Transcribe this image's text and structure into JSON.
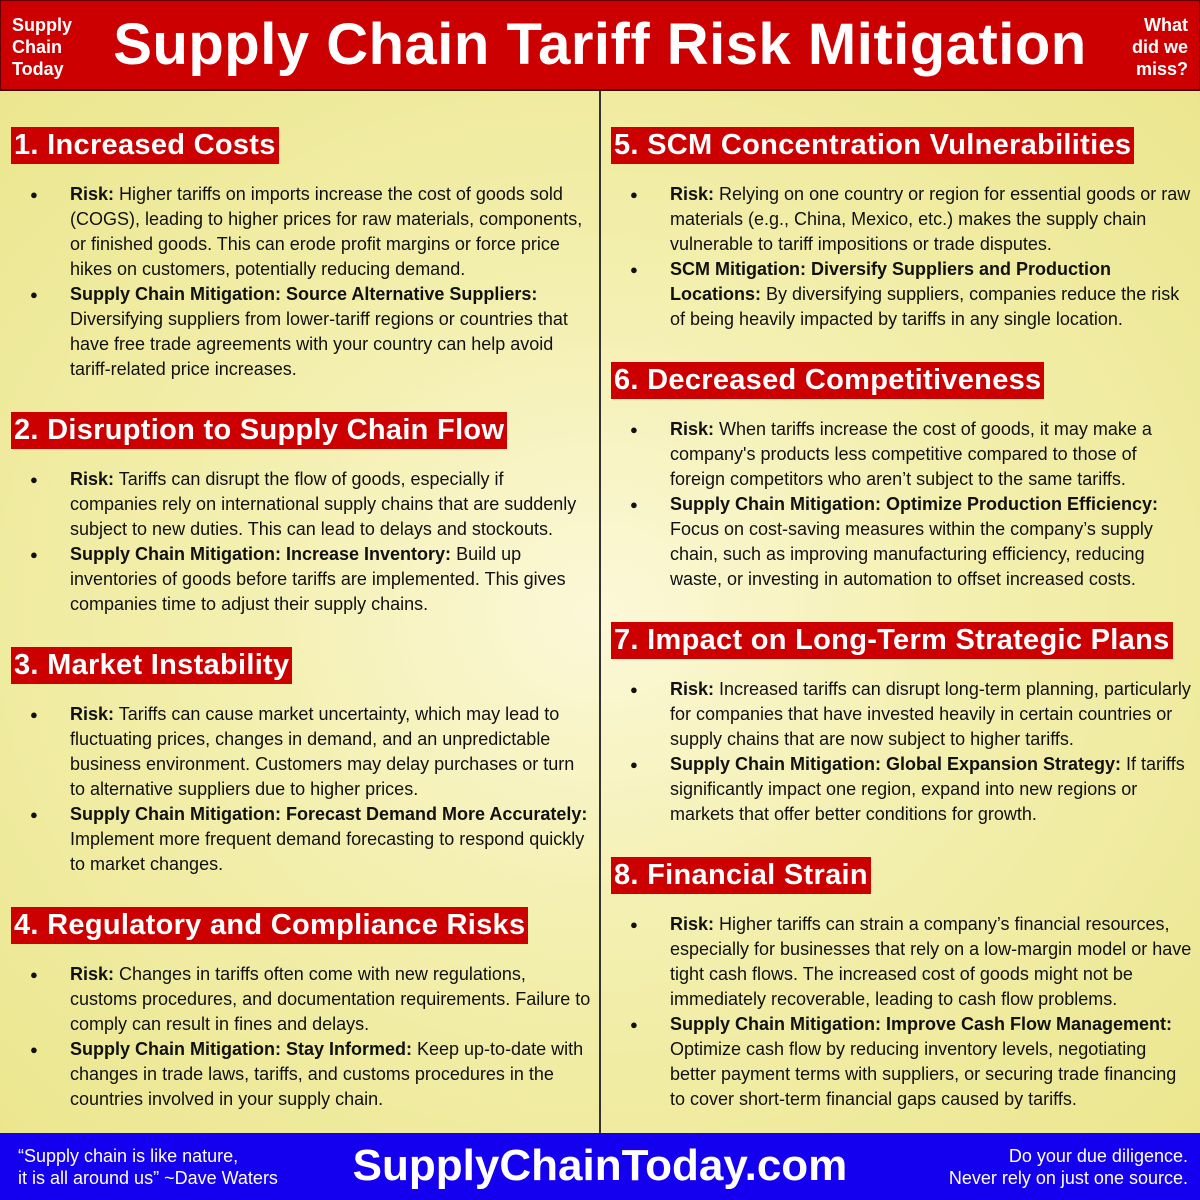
{
  "header": {
    "brand": [
      "Supply",
      "Chain",
      "Today"
    ],
    "title": "Supply Chain Tariff Risk Mitigation",
    "miss": [
      "What",
      "did we",
      "miss?"
    ]
  },
  "sections": [
    {
      "title": "1. Increased Costs",
      "items": [
        {
          "label": "Risk:",
          "text": " Higher tariffs on imports increase the cost of goods sold (COGS), leading to higher prices for raw materials, components, or finished goods. This can erode profit margins or force price hikes on customers, potentially reducing demand."
        },
        {
          "label": "Supply Chain Mitigation: Source Alternative Suppliers:",
          "text": " Diversifying suppliers from lower-tariff regions or countries that have free trade agreements with your country can help avoid tariff-related price increases."
        }
      ]
    },
    {
      "title": "2. Disruption to Supply Chain Flow",
      "items": [
        {
          "label": "Risk:",
          "text": " Tariffs can disrupt the flow of goods, especially if companies rely on international supply chains that are suddenly subject to new duties. This can lead to delays and stockouts."
        },
        {
          "label": "Supply Chain Mitigation: Increase Inventory:",
          "text": " Build up inventories of goods before tariffs are implemented. This gives companies time to adjust their supply chains."
        }
      ]
    },
    {
      "title": "3. Market Instability",
      "items": [
        {
          "label": "Risk:",
          "text": " Tariffs can cause market uncertainty, which may lead to fluctuating prices, changes in demand, and an unpredictable business environment. Customers may delay purchases or turn to alternative suppliers due to higher prices."
        },
        {
          "label": "Supply Chain Mitigation: Forecast Demand More Accurately:",
          "text": " Implement more frequent demand forecasting to respond quickly to market changes."
        }
      ]
    },
    {
      "title": "4. Regulatory and Compliance Risks",
      "items": [
        {
          "label": "Risk:",
          "text": " Changes in tariffs often come with new regulations, customs procedures, and documentation requirements. Failure to comply can result in fines and delays."
        },
        {
          "label": "Supply Chain Mitigation: Stay Informed:",
          "text": " Keep up-to-date with changes in trade laws, tariffs, and customs procedures in the countries involved in your supply chain."
        }
      ]
    },
    {
      "title": "5. SCM Concentration Vulnerabilities",
      "items": [
        {
          "label": "Risk:",
          "text": " Relying on one country or region for essential goods or raw materials (e.g., China, Mexico, etc.) makes the supply chain vulnerable to tariff impositions or trade disputes."
        },
        {
          "label": "SCM Mitigation: Diversify Suppliers and Production Locations:",
          "text": " By diversifying suppliers, companies reduce the risk of being heavily impacted by tariffs in any single location."
        }
      ]
    },
    {
      "title": "6. Decreased Competitiveness",
      "items": [
        {
          "label": "Risk:",
          "text": " When tariffs increase the cost of goods, it may make a company's products less competitive compared to those of foreign competitors who aren’t subject to the same tariffs."
        },
        {
          "label": "Supply Chain Mitigation: Optimize Production Efficiency:",
          "text": " Focus on cost-saving measures within the company’s supply chain, such as improving manufacturing efficiency, reducing waste, or investing in automation to offset increased costs."
        }
      ]
    },
    {
      "title": "7. Impact on Long-Term Strategic Plans",
      "items": [
        {
          "label": "Risk:",
          "text": " Increased tariffs can disrupt long-term planning, particularly for companies that have invested heavily in certain countries or supply chains that are now subject to higher tariffs."
        },
        {
          "label": "Supply Chain Mitigation: Global Expansion Strategy:",
          "text": " If tariffs significantly impact one region, expand into new regions or markets that offer better conditions for growth."
        }
      ]
    },
    {
      "title": "8. Financial Strain",
      "items": [
        {
          "label": "Risk:",
          "text": " Higher tariffs can strain a company’s financial resources, especially for businesses that rely on a low-margin model or have tight cash flows. The increased cost of goods might not be immediately recoverable, leading to cash flow problems."
        },
        {
          "label": "Supply Chain Mitigation: Improve Cash Flow Management:",
          "text": " Optimize cash flow by reducing inventory levels, negotiating better payment terms with suppliers, or securing trade financing to cover short-term financial gaps caused by tariffs."
        }
      ]
    }
  ],
  "footer": {
    "quote": [
      "“Supply chain is like nature,",
      "it is all around us” ~Dave Waters"
    ],
    "site": "SupplyChainToday.com",
    "disclaimer": [
      "Do your due diligence.",
      "Never rely on just one source."
    ]
  },
  "colors": {
    "header": "#cc0000",
    "heading_bg": "#cc0000",
    "footer": "#1400ee",
    "background": "#eee99a"
  }
}
